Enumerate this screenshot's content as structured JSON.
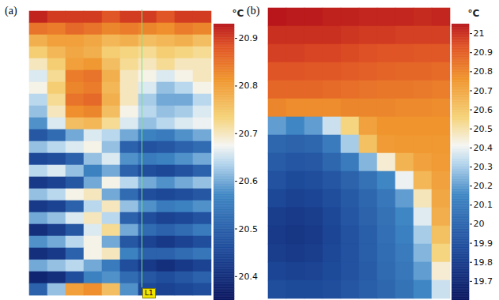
{
  "chart_data": [
    {
      "type": "heatmap",
      "title": "(a)",
      "tick_labels": false,
      "annotations": [
        "L1"
      ],
      "colorbar": {
        "label": "°C",
        "range": [
          20.35,
          20.93
        ],
        "ticks": [
          20.4,
          20.5,
          20.6,
          20.7,
          20.8,
          20.9
        ]
      },
      "cells": [
        [
          20.92,
          20.9,
          20.9,
          20.9,
          20.88,
          20.9,
          20.9,
          20.88,
          20.9,
          20.9
        ],
        [
          20.85,
          20.84,
          20.86,
          20.85,
          20.83,
          20.84,
          20.83,
          20.82,
          20.84,
          20.83
        ],
        [
          20.78,
          20.8,
          20.8,
          20.79,
          20.77,
          20.78,
          20.76,
          20.77,
          20.78,
          20.76
        ],
        [
          20.74,
          20.77,
          20.79,
          20.78,
          20.74,
          20.73,
          20.72,
          20.74,
          20.73,
          20.72
        ],
        [
          20.7,
          20.74,
          20.8,
          20.81,
          20.76,
          20.72,
          20.7,
          20.72,
          20.7,
          20.7
        ],
        [
          20.66,
          20.72,
          20.84,
          20.85,
          20.78,
          20.7,
          20.68,
          20.66,
          20.68,
          20.7
        ],
        [
          20.68,
          20.74,
          20.83,
          20.84,
          20.77,
          20.7,
          20.66,
          20.62,
          20.64,
          20.68
        ],
        [
          20.64,
          20.72,
          20.85,
          20.86,
          20.78,
          20.7,
          20.63,
          20.6,
          20.6,
          20.64
        ],
        [
          20.62,
          20.7,
          20.82,
          20.83,
          20.76,
          20.68,
          20.64,
          20.62,
          20.63,
          20.66
        ],
        [
          20.58,
          20.66,
          20.76,
          20.77,
          20.72,
          20.66,
          20.62,
          20.64,
          20.66,
          20.67
        ],
        [
          20.48,
          20.52,
          20.6,
          20.66,
          20.64,
          20.6,
          20.56,
          20.55,
          20.58,
          20.6
        ],
        [
          20.62,
          20.64,
          20.66,
          20.68,
          20.62,
          20.5,
          20.47,
          20.48,
          20.5,
          20.52
        ],
        [
          20.45,
          20.46,
          20.5,
          20.62,
          20.66,
          20.58,
          20.55,
          20.56,
          20.58,
          20.6
        ],
        [
          20.64,
          20.66,
          20.62,
          20.56,
          20.6,
          20.5,
          20.46,
          20.45,
          20.47,
          20.5
        ],
        [
          20.42,
          20.44,
          20.48,
          20.6,
          20.68,
          20.64,
          20.6,
          20.58,
          20.6,
          20.62
        ],
        [
          20.62,
          20.64,
          20.68,
          20.7,
          20.6,
          20.52,
          20.46,
          20.45,
          20.46,
          20.48
        ],
        [
          20.42,
          20.44,
          20.5,
          20.64,
          20.7,
          20.62,
          20.58,
          20.55,
          20.56,
          20.58
        ],
        [
          20.6,
          20.62,
          20.66,
          20.7,
          20.64,
          20.5,
          20.46,
          20.44,
          20.45,
          20.47
        ],
        [
          20.4,
          20.43,
          20.48,
          20.66,
          20.72,
          20.6,
          20.52,
          20.5,
          20.52,
          20.55
        ],
        [
          20.58,
          20.6,
          20.64,
          20.68,
          20.6,
          20.48,
          20.44,
          20.42,
          20.44,
          20.46
        ],
        [
          20.4,
          20.42,
          20.5,
          20.68,
          20.7,
          20.56,
          20.5,
          20.5,
          20.52,
          20.54
        ],
        [
          20.6,
          20.62,
          20.64,
          20.6,
          20.55,
          20.46,
          20.42,
          20.4,
          20.42,
          20.44
        ],
        [
          20.38,
          20.4,
          20.46,
          20.56,
          20.58,
          20.52,
          20.48,
          20.46,
          20.48,
          20.5
        ],
        [
          20.5,
          20.62,
          20.8,
          20.82,
          20.76,
          20.58,
          20.45,
          20.44,
          20.45,
          20.46
        ]
      ]
    },
    {
      "type": "heatmap",
      "title": "(b)",
      "tick_labels": false,
      "colorbar": {
        "label": "°C",
        "range": [
          19.6,
          21.05
        ],
        "ticks": [
          19.7,
          19.8,
          19.9,
          20,
          20.1,
          20.2,
          20.3,
          20.4,
          20.5,
          20.6,
          20.7,
          20.8,
          20.9,
          21
        ]
      },
      "cells": [
        [
          21.05,
          21.04,
          21.04,
          21.03,
          21.03,
          21.02,
          21.02,
          21.02,
          21.01,
          21.02
        ],
        [
          21.0,
          21.0,
          21.0,
          21.0,
          20.99,
          20.98,
          20.98,
          20.97,
          20.97,
          20.97
        ],
        [
          20.97,
          20.97,
          20.96,
          20.96,
          20.95,
          20.94,
          20.93,
          20.93,
          20.92,
          20.92
        ],
        [
          20.93,
          20.93,
          20.92,
          20.92,
          20.91,
          20.9,
          20.89,
          20.88,
          20.88,
          20.87
        ],
        [
          20.88,
          20.88,
          20.88,
          20.87,
          20.86,
          20.85,
          20.84,
          20.84,
          20.83,
          20.82
        ],
        [
          20.8,
          20.78,
          20.78,
          20.78,
          20.8,
          20.8,
          20.8,
          20.79,
          20.79,
          20.78
        ],
        [
          20.2,
          20.15,
          20.2,
          20.35,
          20.55,
          20.72,
          20.76,
          20.76,
          20.76,
          20.76
        ],
        [
          20.0,
          19.98,
          20.0,
          20.1,
          20.3,
          20.62,
          20.74,
          20.75,
          20.75,
          20.75
        ],
        [
          19.95,
          19.92,
          19.93,
          20.0,
          20.1,
          20.25,
          20.45,
          20.66,
          20.72,
          20.74
        ],
        [
          19.9,
          19.86,
          19.88,
          19.92,
          19.98,
          20.05,
          20.15,
          20.4,
          20.65,
          20.72
        ],
        [
          19.85,
          19.82,
          19.84,
          19.88,
          19.94,
          20.0,
          20.08,
          20.2,
          20.48,
          20.7
        ],
        [
          19.8,
          19.78,
          19.8,
          19.85,
          19.92,
          19.98,
          20.05,
          20.15,
          20.38,
          20.68
        ],
        [
          19.78,
          19.76,
          19.78,
          19.84,
          19.9,
          19.96,
          20.04,
          20.12,
          20.3,
          20.62
        ],
        [
          19.8,
          19.78,
          19.8,
          19.85,
          19.9,
          19.96,
          20.03,
          20.1,
          20.25,
          20.55
        ],
        [
          19.84,
          19.82,
          19.83,
          19.86,
          19.9,
          19.95,
          20.02,
          20.08,
          20.2,
          20.45
        ],
        [
          19.88,
          19.86,
          19.86,
          19.88,
          19.92,
          19.96,
          20.0,
          20.06,
          20.15,
          20.35
        ]
      ]
    }
  ]
}
